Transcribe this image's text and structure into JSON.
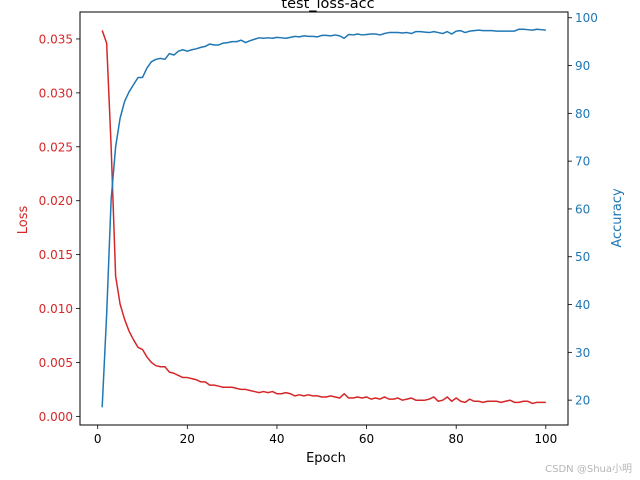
{
  "chart_data": {
    "type": "line",
    "title": "test_loss-acc",
    "xlabel": "Epoch",
    "ylabel_left": "Loss",
    "ylabel_right": "Accuracy",
    "xlim": [
      -3.95,
      104.95
    ],
    "ylim_left": [
      -0.0008,
      0.0375
    ],
    "ylim_right": [
      14.8,
      101.2
    ],
    "xticks": [
      0,
      20,
      40,
      60,
      80,
      100
    ],
    "yticks_left": [
      "0.000",
      "0.005",
      "0.010",
      "0.015",
      "0.020",
      "0.025",
      "0.030",
      "0.035"
    ],
    "yticks_right": [
      20,
      30,
      40,
      50,
      60,
      70,
      80,
      90,
      100
    ],
    "grid": false,
    "colors": {
      "loss": "#d62728",
      "accuracy": "#1f77b4"
    },
    "series": [
      {
        "axis": "left",
        "x": [
          1,
          2,
          3,
          4,
          5,
          6,
          7,
          8,
          9,
          10,
          11,
          12,
          13,
          14,
          15,
          16,
          17,
          18,
          19,
          20,
          21,
          22,
          23,
          24,
          25,
          26,
          27,
          28,
          29,
          30,
          31,
          32,
          33,
          34,
          35,
          36,
          37,
          38,
          39,
          40,
          41,
          42,
          43,
          44,
          45,
          46,
          47,
          48,
          49,
          50,
          51,
          52,
          53,
          54,
          55,
          56,
          57,
          58,
          59,
          60,
          61,
          62,
          63,
          64,
          65,
          66,
          67,
          68,
          69,
          70,
          71,
          72,
          73,
          74,
          75,
          76,
          77,
          78,
          79,
          80,
          81,
          82,
          83,
          84,
          85,
          86,
          87,
          88,
          89,
          90,
          91,
          92,
          93,
          94,
          95,
          96,
          97,
          98,
          99,
          100
        ],
        "values": [
          0.0358,
          0.0346,
          0.025,
          0.013,
          0.0104,
          0.009,
          0.0079,
          0.0071,
          0.0064,
          0.0062,
          0.0055,
          0.005,
          0.0047,
          0.0046,
          0.0046,
          0.0041,
          0.004,
          0.0038,
          0.0036,
          0.0036,
          0.0035,
          0.0034,
          0.0032,
          0.0032,
          0.0029,
          0.0029,
          0.0028,
          0.0027,
          0.0027,
          0.0027,
          0.0026,
          0.0025,
          0.0025,
          0.0024,
          0.0023,
          0.0022,
          0.0023,
          0.0022,
          0.0023,
          0.0021,
          0.0021,
          0.0022,
          0.0021,
          0.0019,
          0.002,
          0.0019,
          0.002,
          0.0019,
          0.0019,
          0.0018,
          0.0018,
          0.0019,
          0.0018,
          0.0017,
          0.0021,
          0.0017,
          0.0017,
          0.0018,
          0.0017,
          0.0018,
          0.0016,
          0.0017,
          0.0016,
          0.0018,
          0.0016,
          0.0016,
          0.0017,
          0.0015,
          0.0016,
          0.0017,
          0.0015,
          0.0015,
          0.0015,
          0.0016,
          0.0018,
          0.0014,
          0.0015,
          0.0018,
          0.0014,
          0.0017,
          0.0014,
          0.0013,
          0.0016,
          0.0014,
          0.0014,
          0.0013,
          0.0014,
          0.0014,
          0.0014,
          0.0013,
          0.0014,
          0.0015,
          0.0013,
          0.0013,
          0.0014,
          0.0014,
          0.0012,
          0.0013,
          0.0013,
          0.0013
        ]
      },
      {
        "axis": "right",
        "x": [
          1,
          2,
          3,
          4,
          5,
          6,
          7,
          8,
          9,
          10,
          11,
          12,
          13,
          14,
          15,
          16,
          17,
          18,
          19,
          20,
          21,
          22,
          23,
          24,
          25,
          26,
          27,
          28,
          29,
          30,
          31,
          32,
          33,
          34,
          35,
          36,
          37,
          38,
          39,
          40,
          41,
          42,
          43,
          44,
          45,
          46,
          47,
          48,
          49,
          50,
          51,
          52,
          53,
          54,
          55,
          56,
          57,
          58,
          59,
          60,
          61,
          62,
          63,
          64,
          65,
          66,
          67,
          68,
          69,
          70,
          71,
          72,
          73,
          74,
          75,
          76,
          77,
          78,
          79,
          80,
          81,
          82,
          83,
          84,
          85,
          86,
          87,
          88,
          89,
          90,
          91,
          92,
          93,
          94,
          95,
          96,
          97,
          98,
          99,
          100
        ],
        "values": [
          18.5,
          38,
          62,
          73,
          79,
          82.5,
          84.5,
          86,
          87.5,
          87.5,
          89.5,
          90.8,
          91.3,
          91.5,
          91.3,
          92.5,
          92.2,
          93,
          93.3,
          93,
          93.3,
          93.5,
          93.8,
          94,
          94.5,
          94.3,
          94.3,
          94.7,
          94.8,
          95,
          95,
          95.3,
          94.8,
          95.2,
          95.5,
          95.8,
          95.7,
          95.8,
          95.7,
          95.9,
          95.8,
          95.7,
          95.9,
          96.1,
          96,
          96.2,
          96.1,
          96.1,
          96,
          96.3,
          96.3,
          96.2,
          96.4,
          96.2,
          95.7,
          96.5,
          96.4,
          96.6,
          96.4,
          96.5,
          96.6,
          96.6,
          96.4,
          96.7,
          96.9,
          96.9,
          96.9,
          96.8,
          96.9,
          96.7,
          97.1,
          97.1,
          97,
          96.9,
          97.1,
          96.9,
          96.7,
          97.1,
          96.6,
          97.2,
          97.3,
          96.9,
          97.2,
          97.3,
          97.4,
          97.3,
          97.3,
          97.3,
          97.2,
          97.2,
          97.2,
          97.2,
          97.2,
          97.6,
          97.6,
          97.5,
          97.4,
          97.6,
          97.5,
          97.4
        ]
      }
    ],
    "watermark": "CSDN @Shua小明"
  }
}
